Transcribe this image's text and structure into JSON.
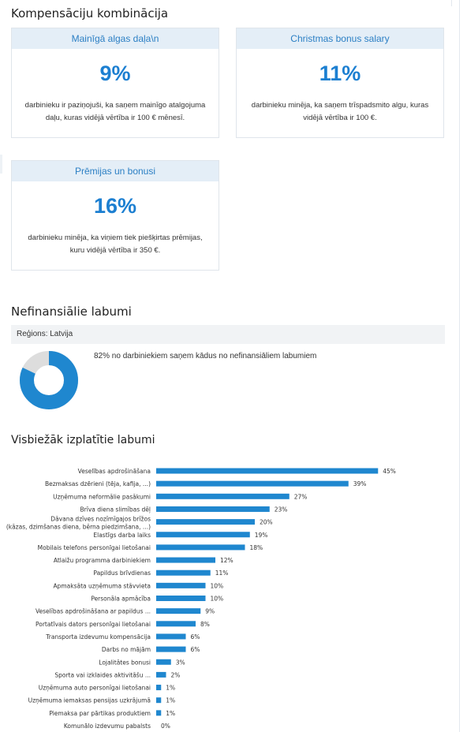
{
  "compensation": {
    "title": "Kompensāciju kombinācija",
    "cards": [
      {
        "header": "Mainīgā algas daļa\\n",
        "percent": "9%",
        "description": "darbinieku ir paziņojuši, ka saņem mainīgo atalgojuma daļu, kuras vidējā vērtība ir 100 € mēnesī."
      },
      {
        "header": "Christmas bonus salary",
        "percent": "11%",
        "description": "darbinieku minēja, ka saņem trīspadsmito algu, kuras vidējā vērtība ir 100 €."
      },
      {
        "header": "Prēmijas un bonusi",
        "percent": "16%",
        "description": "darbinieku minēja, ka viņiem tiek piešķirtas prēmijas, kuru vidējā vērtība ir 350 €."
      }
    ]
  },
  "nonfinancial": {
    "title": "Nefinansiālie labumi",
    "region": "Reģions: Latvija",
    "summary": "82% no darbiniekiem saņem kādus no nefinansiāliem labumiem",
    "donut": {
      "value": 82,
      "color": "#1f87cf",
      "rest_color": "#dddddd"
    }
  },
  "benefits": {
    "title": "Visbiežāk izplatītie labumi"
  },
  "chart_data": {
    "type": "bar",
    "orientation": "horizontal",
    "bar_color": "#1f87cf",
    "categories": [
      "Veselības apdrošināšana",
      "Bezmaksas dzērieni (tēja, kafija, ...)",
      "Uzņēmuma neformālie pasākumi",
      "Brīva diena slimības dēļ",
      "Dāvana dzīves nozīmīgajos brīžos (kāzas, dzimšanas diena, bērna piedzimšana, ...)",
      "Elastīgs darba laiks",
      "Mobilais telefons personīgai lietošanai",
      "Atlaižu programma darbiniekiem",
      "Papildus brīvdienas",
      "Apmaksāta uzņēmuma stāvvieta",
      "Personāla apmācība",
      "Veselības apdrošināšana ar papildus ...",
      "Portatīvais dators personīgai lietošanai",
      "Transporta izdevumu kompensācija",
      "Darbs no mājām",
      "Lojalitātes bonusi",
      "Sporta vai izklaides aktivitāšu ...",
      "Uzņēmuma auto personīgai lietošanai",
      "Uzņēmuma iemaksas pensijas uzkrājumā",
      "Piemaksa par pārtikas produktiem",
      "Komunālo izdevumu pabalsts"
    ],
    "values": [
      45,
      39,
      27,
      23,
      20,
      19,
      18,
      12,
      11,
      10,
      10,
      9,
      8,
      6,
      6,
      3,
      2,
      1,
      1,
      1,
      0
    ],
    "value_labels": [
      "45%",
      "39%",
      "27%",
      "23%",
      "20%",
      "19%",
      "18%",
      "12%",
      "11%",
      "10%",
      "10%",
      "9%",
      "8%",
      "6%",
      "6%",
      "3%",
      "2%",
      "1%",
      "1%",
      "1%",
      "0%"
    ],
    "xlim": [
      0,
      50
    ]
  }
}
